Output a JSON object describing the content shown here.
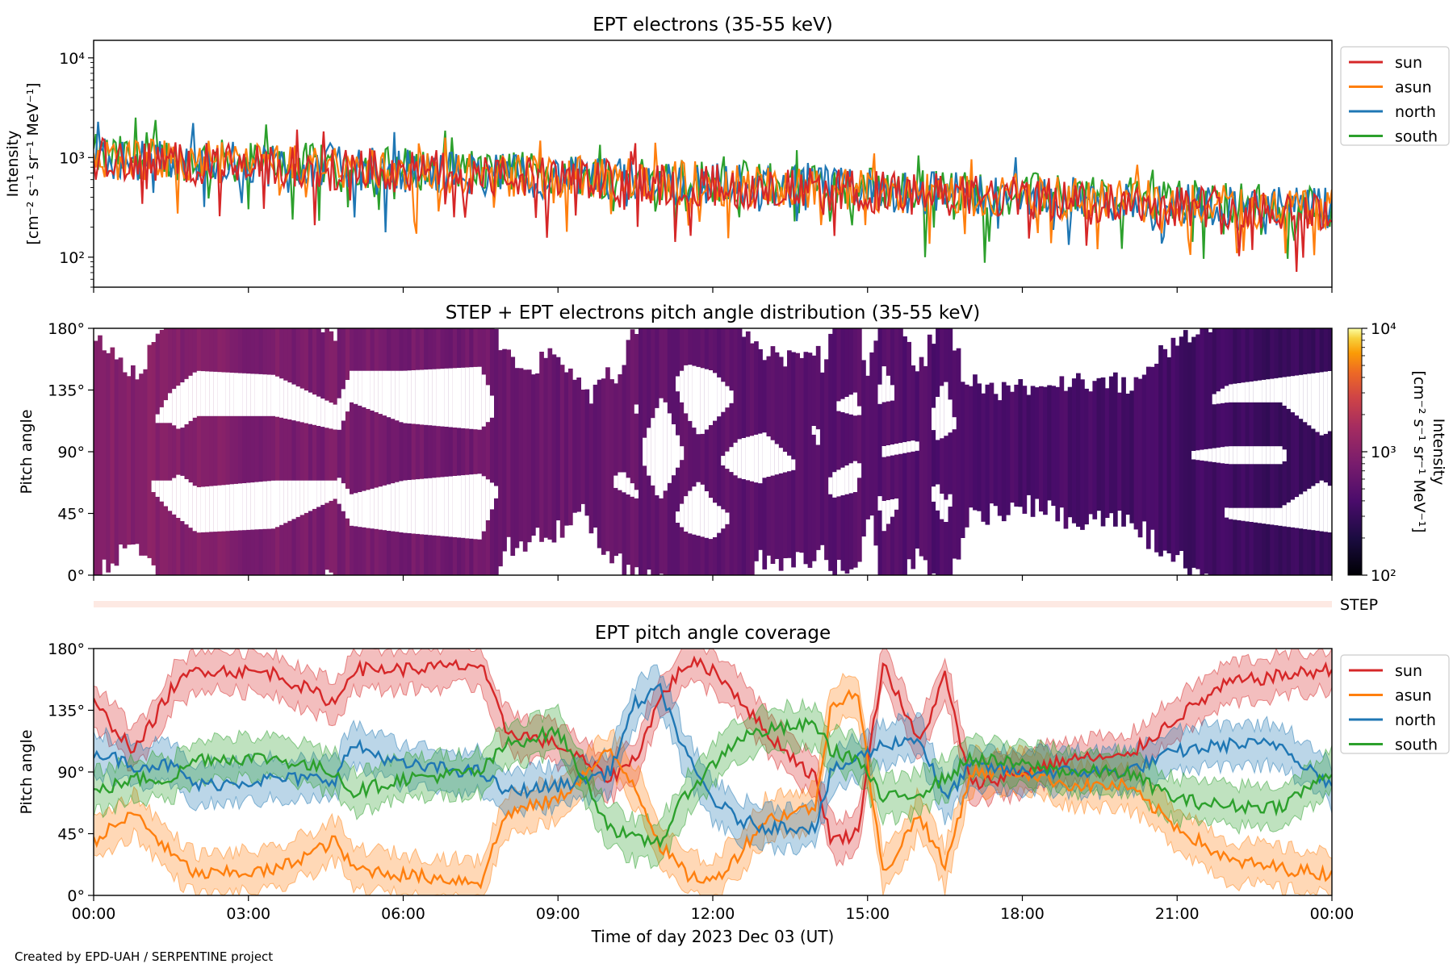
{
  "figure": {
    "footer": "Created by EPD-UAH / SERPENTINE project",
    "xlabel": "Time of day 2023 Dec 03 (UT)",
    "x_ticks": [
      "00:00",
      "03:00",
      "06:00",
      "09:00",
      "12:00",
      "15:00",
      "18:00",
      "21:00",
      "00:00"
    ],
    "step_label": "STEP"
  },
  "chart_data": [
    {
      "type": "line",
      "title": "EPT electrons (35-55 keV)",
      "ylabel_line1": "Intensity",
      "ylabel_line2": "[cm⁻² s⁻¹ sr⁻¹ MeV⁻¹]",
      "yscale": "log",
      "ylim": [
        50,
        15000
      ],
      "y_tick_labels": [
        "10²",
        "10³",
        "10⁴"
      ],
      "y_tick_values": [
        100,
        1000,
        10000
      ],
      "xlim_hours": [
        0,
        24
      ],
      "legend_position": "outside-top-right",
      "series": [
        {
          "name": "south",
          "color": "#2ca02c",
          "trend_start": 1050,
          "trend_end": 320
        },
        {
          "name": "north",
          "color": "#1f77b4",
          "trend_start": 1000,
          "trend_end": 300
        },
        {
          "name": "asun",
          "color": "#ff7f0e",
          "trend_start": 1000,
          "trend_end": 300
        },
        {
          "name": "sun",
          "color": "#d62728",
          "trend_start": 950,
          "trend_end": 290
        }
      ]
    },
    {
      "type": "heatmap",
      "title": "STEP + EPT electrons pitch angle distribution (35-55 keV)",
      "ylabel": "Pitch angle",
      "ylim": [
        0,
        180
      ],
      "y_tick_labels": [
        "0°",
        "45°",
        "90°",
        "135°",
        "180°"
      ],
      "colorbar_label_line1": "Intensity",
      "colorbar_label_line2": "[cm⁻² s⁻¹ sr⁻¹ MeV⁻¹]",
      "colorbar_scale": "log",
      "colorbar_range": [
        100,
        10000
      ],
      "colorbar_tick_labels": [
        "10²",
        "10³",
        "10⁴"
      ],
      "colormap": "inferno",
      "intensity_start": 1000,
      "intensity_end": 300
    },
    {
      "type": "line",
      "title": "EPT pitch angle coverage",
      "ylabel": "Pitch angle",
      "ylim": [
        0,
        180
      ],
      "y_tick_labels": [
        "0°",
        "45°",
        "90°",
        "135°",
        "180°"
      ],
      "xlim_hours": [
        0,
        24
      ],
      "legend_position": "outside-top-right",
      "series": [
        {
          "name": "sun",
          "color": "#d62728",
          "hours": [
            0,
            0.8,
            1.5,
            2,
            3.5,
            4.7,
            5,
            6,
            7.5,
            8,
            9,
            10,
            10.5,
            11,
            11.5,
            12,
            12.5,
            13,
            14,
            14.3,
            14.8,
            15.3,
            16,
            16.5,
            17,
            18,
            19,
            20,
            21,
            22,
            23,
            24
          ],
          "values": [
            140,
            105,
            150,
            165,
            162,
            140,
            165,
            165,
            168,
            120,
            110,
            85,
            100,
            145,
            170,
            165,
            145,
            120,
            85,
            40,
            45,
            170,
            110,
            160,
            80,
            90,
            100,
            100,
            130,
            155,
            160,
            165
          ]
        },
        {
          "name": "asun",
          "color": "#ff7f0e",
          "hours": [
            0,
            0.8,
            1.5,
            2,
            3.5,
            4.7,
            5,
            6,
            7.5,
            8,
            9,
            10,
            10.5,
            11,
            11.5,
            12,
            12.5,
            13,
            14,
            14.3,
            14.8,
            15.3,
            16,
            16.5,
            17,
            18,
            19,
            20,
            21,
            22,
            23,
            24
          ],
          "values": [
            40,
            60,
            30,
            15,
            18,
            40,
            20,
            15,
            10,
            60,
            70,
            105,
            80,
            35,
            15,
            10,
            30,
            55,
            65,
            140,
            150,
            15,
            60,
            20,
            90,
            90,
            80,
            80,
            50,
            25,
            20,
            15
          ]
        },
        {
          "name": "north",
          "color": "#1f77b4",
          "hours": [
            0,
            0.8,
            1.5,
            2,
            3.5,
            4.7,
            5,
            6,
            7.5,
            8,
            9,
            10,
            10.5,
            11,
            11.5,
            12,
            12.5,
            13,
            14,
            14.3,
            14.8,
            15.3,
            16,
            16.5,
            17,
            18,
            19,
            20,
            21,
            22,
            23,
            24
          ],
          "values": [
            105,
            95,
            95,
            80,
            85,
            85,
            110,
            95,
            90,
            75,
            80,
            90,
            140,
            150,
            100,
            70,
            55,
            50,
            50,
            90,
            100,
            110,
            115,
            70,
            95,
            90,
            90,
            90,
            105,
            110,
            110,
            80
          ]
        },
        {
          "name": "south",
          "color": "#2ca02c",
          "hours": [
            0,
            0.8,
            1.5,
            2,
            3.5,
            4.7,
            5,
            6,
            7.5,
            8,
            9,
            10,
            10.5,
            11,
            11.5,
            12,
            12.5,
            13,
            14,
            14.3,
            14.8,
            15.3,
            16,
            16.5,
            17,
            18,
            19,
            20,
            21,
            22,
            23,
            24
          ],
          "values": [
            75,
            85,
            85,
            100,
            100,
            90,
            75,
            85,
            90,
            110,
            120,
            50,
            40,
            40,
            75,
            95,
            115,
            120,
            125,
            105,
            100,
            70,
            75,
            85,
            100,
            95,
            90,
            90,
            70,
            65,
            65,
            90
          ]
        }
      ]
    }
  ]
}
